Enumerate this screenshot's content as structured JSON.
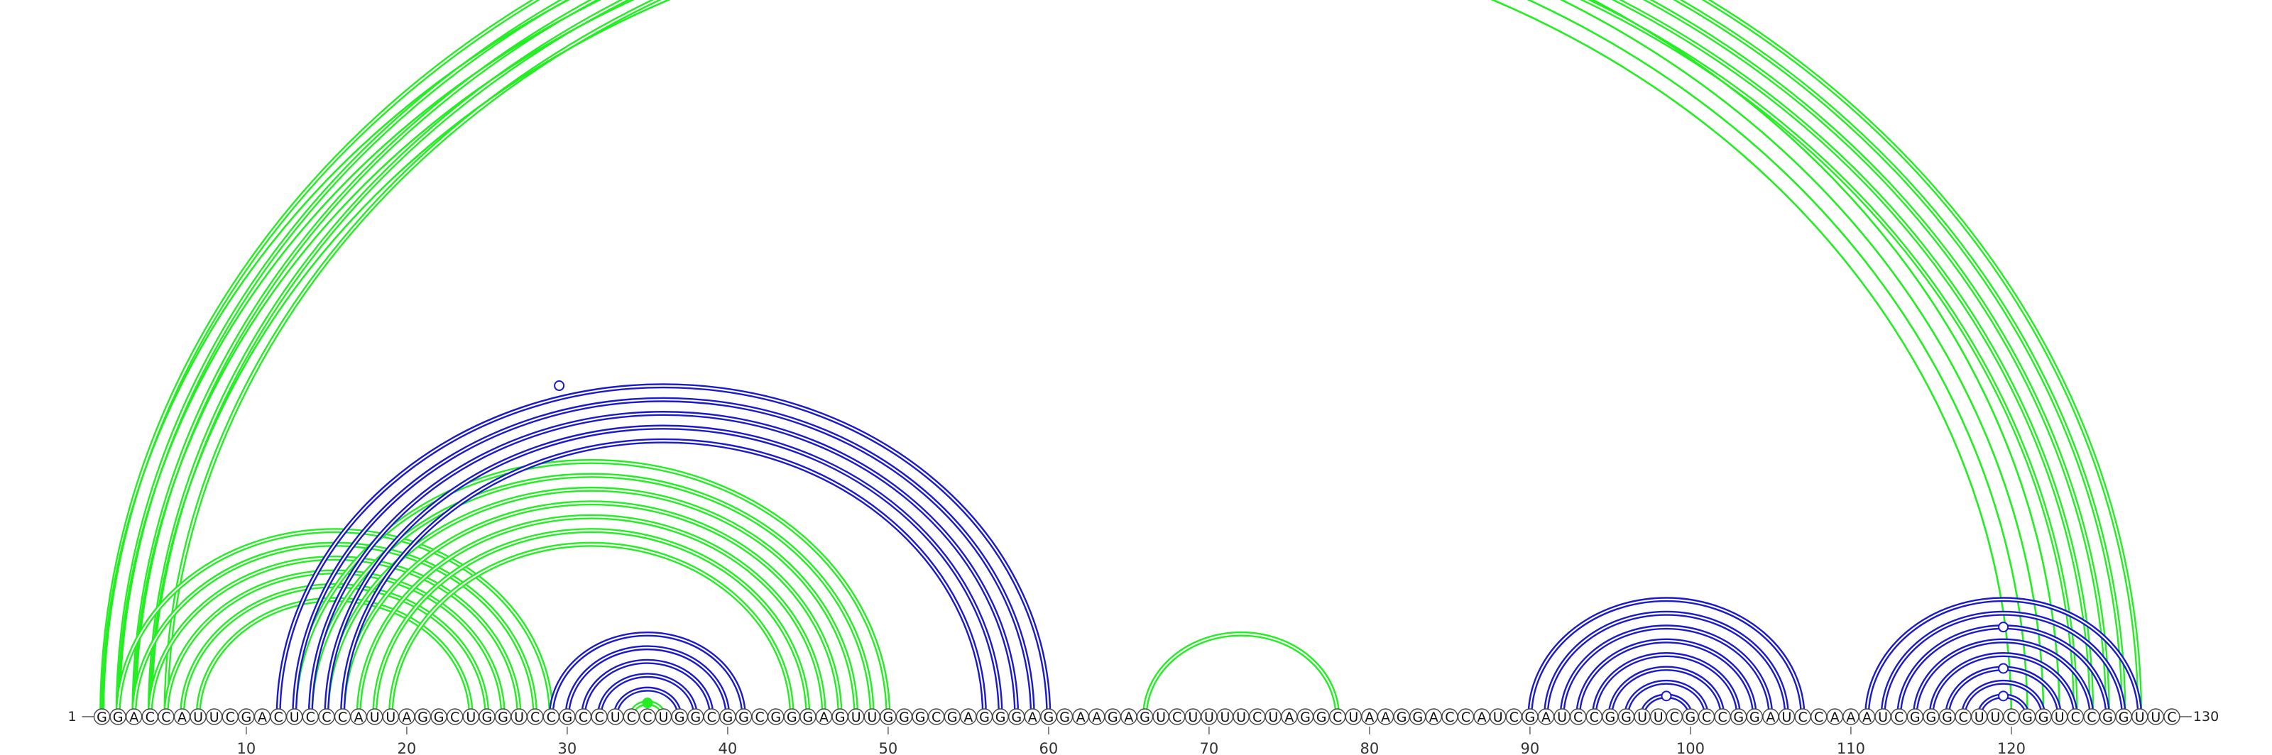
{
  "diagram": {
    "sequence": "GGACCAUUCGACUCCCAUUAGGCUGGUCCGCCUCCUGGCGGCGGGAGUUGGGCGAGGGAGGAAGAGUCUUUUCUAGGCUAAGGACCAUCGAUCCGGUUCGCCGGAUCCAAAUCGGGCUUCGGUCCGGUUC",
    "start_label": "1",
    "end_label": "130",
    "tick_labels": [
      "10",
      "20",
      "30",
      "40",
      "50",
      "60",
      "70",
      "80",
      "90",
      "100",
      "110",
      "120"
    ],
    "colors": {
      "green": "#22ee22",
      "blue": "#1a1acc"
    },
    "helices": [
      {
        "color": "green",
        "pairs": [
          [
            1,
            128
          ],
          [
            2,
            127
          ],
          [
            3,
            126
          ],
          [
            4,
            125
          ],
          [
            5,
            124
          ]
        ],
        "style": "double"
      },
      {
        "color": "green",
        "pairs": [
          [
            1,
            123
          ],
          [
            2,
            122
          ],
          [
            3,
            121
          ],
          [
            4,
            120
          ]
        ],
        "style": "single"
      },
      {
        "color": "green",
        "pairs": [
          [
            2,
            29
          ],
          [
            3,
            28
          ],
          [
            4,
            27
          ],
          [
            5,
            26
          ],
          [
            6,
            25
          ],
          [
            7,
            24
          ]
        ],
        "style": "double"
      },
      {
        "color": "green",
        "pairs": [
          [
            13,
            50
          ],
          [
            14,
            49
          ],
          [
            15,
            48
          ],
          [
            16,
            47
          ],
          [
            17,
            46
          ],
          [
            18,
            45
          ],
          [
            19,
            44
          ]
        ],
        "style": "double"
      },
      {
        "color": "green",
        "pairs": [
          [
            34,
            36
          ]
        ],
        "style": "double"
      },
      {
        "color": "green",
        "pairs": [
          [
            66,
            78
          ]
        ],
        "style": "double"
      },
      {
        "color": "blue",
        "pairs": [
          [
            12,
            60
          ],
          [
            13,
            59
          ],
          [
            14,
            58
          ],
          [
            15,
            57
          ],
          [
            16,
            56
          ]
        ],
        "style": "double"
      },
      {
        "color": "blue",
        "pairs": [
          [
            29,
            41
          ],
          [
            30,
            40
          ],
          [
            31,
            39
          ],
          [
            32,
            38
          ],
          [
            33,
            37
          ]
        ],
        "style": "double"
      },
      {
        "color": "blue",
        "pairs": [
          [
            90,
            107
          ],
          [
            91,
            106
          ],
          [
            92,
            105
          ],
          [
            93,
            104
          ],
          [
            94,
            103
          ],
          [
            95,
            102
          ],
          [
            96,
            101
          ],
          [
            97,
            100
          ]
        ],
        "style": "double"
      },
      {
        "color": "blue",
        "pairs": [
          [
            111,
            128
          ],
          [
            112,
            127
          ],
          [
            113,
            126
          ],
          [
            114,
            125
          ],
          [
            115,
            124
          ],
          [
            116,
            123
          ],
          [
            117,
            122
          ],
          [
            118,
            121
          ]
        ],
        "style": "double"
      }
    ],
    "markers": [
      {
        "pos": 65,
        "color": "green",
        "filled": false,
        "arc": [
          1,
          128
        ]
      },
      {
        "pos": 29.5,
        "color": "blue",
        "filled": false,
        "arc": [
          12,
          60
        ]
      },
      {
        "pos": 35,
        "color": "green",
        "filled": true,
        "arc": [
          34,
          36
        ]
      },
      {
        "pos": 98.5,
        "color": "blue",
        "filled": false,
        "arc": [
          97,
          100
        ]
      },
      {
        "pos": 119.5,
        "color": "blue",
        "filled": false,
        "arc": [
          118,
          121
        ]
      },
      {
        "pos": 119.5,
        "color": "blue",
        "filled": false,
        "arc": [
          116,
          123
        ]
      },
      {
        "pos": 119.5,
        "color": "blue",
        "filled": false,
        "arc": [
          113,
          126
        ]
      }
    ]
  }
}
